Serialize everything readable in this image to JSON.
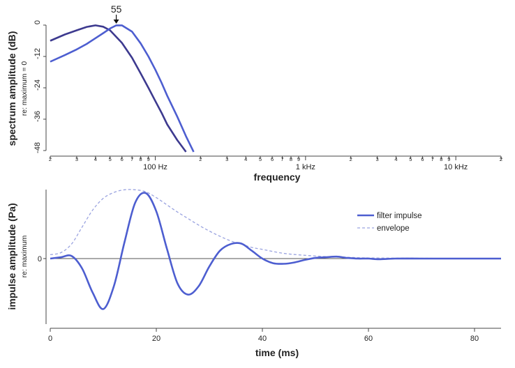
{
  "chart_data": [
    {
      "type": "line",
      "ylabel": "spectrum amplitude (dB)",
      "ylabel_sub": "re: maximum = 0",
      "xlabel": "frequency",
      "x_scale": "log",
      "xlim": [
        20,
        20000
      ],
      "ylim": [
        -48,
        0
      ],
      "y_ticks": [
        "0",
        "-12",
        "-24",
        "-36",
        "-48"
      ],
      "x_major_labels": [
        "100 Hz",
        "1 kHz",
        "10 kHz"
      ],
      "x_minor_labels": [
        "2",
        "3",
        "4",
        "5",
        "6",
        "7",
        "8",
        "9"
      ],
      "annotation": {
        "text": "55",
        "x": 55
      },
      "colors": {
        "dark": "#3d3a8f",
        "bright": "#4d5ed0"
      },
      "series": [
        {
          "color": "#3d3a8f",
          "x": [
            20,
            25,
            30,
            35,
            40,
            45,
            50,
            60,
            70,
            80,
            90,
            100,
            110,
            120,
            140,
            160
          ],
          "y": [
            -6.0,
            -3.6,
            -2.0,
            -0.7,
            -0.1,
            -0.6,
            -2.0,
            -6.8,
            -12.5,
            -18.5,
            -24.0,
            -29.0,
            -33.5,
            -38.0,
            -44.0,
            -48.5
          ]
        },
        {
          "color": "#4d5ed0",
          "x": [
            20,
            25,
            30,
            35,
            40,
            45,
            50,
            55,
            60,
            70,
            80,
            90,
            100,
            110,
            120,
            140,
            160,
            180
          ],
          "y": [
            -14.0,
            -11.5,
            -9.3,
            -7.2,
            -5.0,
            -3.1,
            -1.3,
            -0.1,
            -0.1,
            -2.5,
            -7.0,
            -12.0,
            -17.0,
            -22.0,
            -27.0,
            -35.0,
            -42.5,
            -48.5
          ]
        }
      ]
    },
    {
      "type": "line",
      "ylabel": "impulse amplitude (Pa)",
      "ylabel_sub": "re: maximum",
      "xlabel": "time (ms)",
      "xlim": [
        0,
        85
      ],
      "ylim": [
        -1.05,
        1.05
      ],
      "x_ticks": [
        "0",
        "20",
        "40",
        "60",
        "80"
      ],
      "y_ticks": [
        "0"
      ],
      "legend_position": "top-right",
      "series": [
        {
          "name": "filter impulse",
          "color": "#4d5ed0",
          "style": "solid",
          "x": [
            0,
            2,
            4,
            6,
            8,
            10,
            12,
            14,
            16,
            18,
            20,
            22,
            24,
            26,
            28,
            30,
            32,
            34,
            36,
            38,
            40,
            42,
            44,
            46,
            48,
            50,
            52,
            54,
            56,
            58,
            60,
            62,
            65,
            70,
            75,
            80,
            85
          ],
          "y": [
            0.0,
            0.02,
            0.04,
            -0.15,
            -0.52,
            -0.77,
            -0.42,
            0.25,
            0.85,
            1.0,
            0.72,
            0.15,
            -0.38,
            -0.55,
            -0.42,
            -0.12,
            0.12,
            0.22,
            0.23,
            0.12,
            0.0,
            -0.07,
            -0.08,
            -0.06,
            -0.02,
            0.01,
            0.02,
            0.03,
            0.01,
            0.0,
            0.0,
            -0.01,
            0.0,
            0.0,
            0.0,
            0.0,
            0.0
          ]
        },
        {
          "name": "envelope",
          "color": "#9aa3e0",
          "style": "dashed",
          "x": [
            0,
            2,
            4,
            6,
            8,
            10,
            12,
            14,
            16,
            18,
            20,
            22,
            24,
            26,
            28,
            30,
            32,
            34,
            36,
            38,
            40,
            44,
            48,
            52,
            56,
            60,
            70,
            80,
            85
          ],
          "y": [
            0.06,
            0.09,
            0.22,
            0.48,
            0.74,
            0.92,
            1.01,
            1.05,
            1.05,
            1.02,
            0.93,
            0.82,
            0.71,
            0.61,
            0.51,
            0.42,
            0.34,
            0.27,
            0.22,
            0.17,
            0.14,
            0.08,
            0.05,
            0.03,
            0.02,
            0.01,
            0.005,
            0.002,
            0.0
          ]
        }
      ]
    }
  ]
}
